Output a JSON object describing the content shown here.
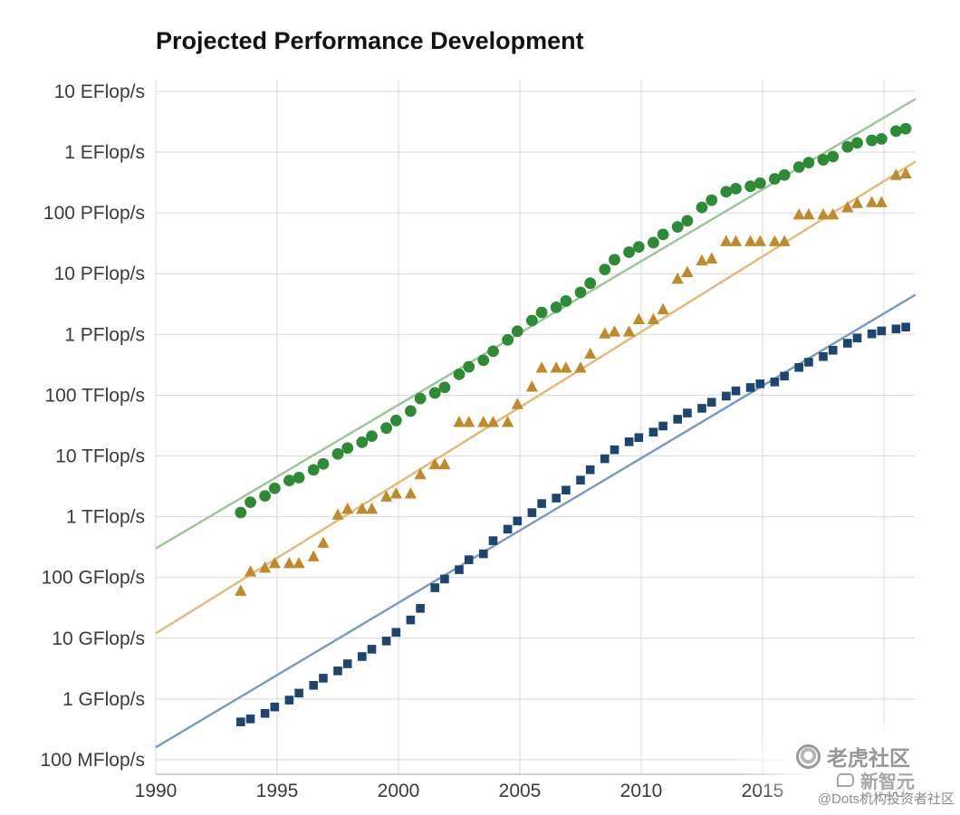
{
  "chart_data": {
    "type": "scatter",
    "title": "Projected Performance Development",
    "x_axis": {
      "min": 1990,
      "max": 2021.3,
      "ticks": [
        1990,
        1995,
        2000,
        2005,
        2010,
        2015,
        2020
      ],
      "grid": true
    },
    "y_axis": {
      "scale": "log",
      "unit": "Flop/s",
      "grid": true,
      "ticks": [
        {
          "label": "10 EFlop/s",
          "gflops": 10000000000.0
        },
        {
          "label": "1 EFlop/s",
          "gflops": 1000000000.0
        },
        {
          "label": "100 PFlop/s",
          "gflops": 100000000.0
        },
        {
          "label": "10 PFlop/s",
          "gflops": 10000000.0
        },
        {
          "label": "1 PFlop/s",
          "gflops": 1000000.0
        },
        {
          "label": "100 TFlop/s",
          "gflops": 100000.0
        },
        {
          "label": "10 TFlop/s",
          "gflops": 10000.0
        },
        {
          "label": "1 TFlop/s",
          "gflops": 1000.0
        },
        {
          "label": "100 GFlop/s",
          "gflops": 100.0
        },
        {
          "label": "10 GFlop/s",
          "gflops": 10
        },
        {
          "label": "1 GFlop/s",
          "gflops": 1
        },
        {
          "label": "100 MFlop/s",
          "gflops": 0.1
        }
      ]
    },
    "style": {
      "grid_color": "#d9d9d9",
      "axis_color": "#a0a0a0",
      "tick_color": "#3b3b3b",
      "title_color": "#111111",
      "background": "#ffffff"
    },
    "series": [
      {
        "id": "sum",
        "marker": "circle",
        "color": "#2e8b35",
        "trend_color": "#9cc79b",
        "points": [
          [
            1993.5,
            1170
          ],
          [
            1993.9,
            1730
          ],
          [
            1994.5,
            2200
          ],
          [
            1994.9,
            2930
          ],
          [
            1995.5,
            3940
          ],
          [
            1995.9,
            4400
          ],
          [
            1996.5,
            5900
          ],
          [
            1996.9,
            7400
          ],
          [
            1997.5,
            10800
          ],
          [
            1997.9,
            13500
          ],
          [
            1998.5,
            16800
          ],
          [
            1998.9,
            21200
          ],
          [
            1999.5,
            28800
          ],
          [
            1999.9,
            38400
          ],
          [
            2000.5,
            54800
          ],
          [
            2000.9,
            88100
          ],
          [
            2001.5,
            108800
          ],
          [
            2001.9,
            134400
          ],
          [
            2002.5,
            220600
          ],
          [
            2002.9,
            293000
          ],
          [
            2003.5,
            375000
          ],
          [
            2003.9,
            528000
          ],
          [
            2004.5,
            813000
          ],
          [
            2004.9,
            1127000
          ],
          [
            2005.5,
            1690000
          ],
          [
            2005.9,
            2300000
          ],
          [
            2006.5,
            2790000
          ],
          [
            2006.9,
            3540000
          ],
          [
            2007.5,
            4920000
          ],
          [
            2007.9,
            6970000
          ],
          [
            2008.5,
            11700000
          ],
          [
            2008.9,
            16950000
          ],
          [
            2009.5,
            22600000
          ],
          [
            2009.9,
            27600000
          ],
          [
            2010.5,
            32400000
          ],
          [
            2010.9,
            44200000
          ],
          [
            2011.5,
            58700000
          ],
          [
            2011.9,
            74200000
          ],
          [
            2012.5,
            123400000
          ],
          [
            2012.9,
            162000000
          ],
          [
            2013.5,
            223000000
          ],
          [
            2013.9,
            250000000
          ],
          [
            2014.5,
            274000000
          ],
          [
            2014.9,
            309000000
          ],
          [
            2015.5,
            363000000
          ],
          [
            2015.9,
            420000000
          ],
          [
            2016.5,
            567000000
          ],
          [
            2016.9,
            672000000
          ],
          [
            2017.5,
            749000000
          ],
          [
            2017.9,
            845000000
          ],
          [
            2018.5,
            1220000000
          ],
          [
            2018.9,
            1420000000
          ],
          [
            2019.5,
            1560000000
          ],
          [
            2019.9,
            1650000000
          ],
          [
            2020.5,
            2220000000
          ],
          [
            2020.9,
            2430000000
          ]
        ]
      },
      {
        "id": "top1",
        "marker": "triangle",
        "color": "#bf8a2b",
        "trend_color": "#e2ba7c",
        "points": [
          [
            1993.5,
            59.7
          ],
          [
            1993.9,
            124
          ],
          [
            1994.5,
            143.4
          ],
          [
            1994.9,
            170
          ],
          [
            1995.5,
            170
          ],
          [
            1995.9,
            170
          ],
          [
            1996.5,
            220.4
          ],
          [
            1996.9,
            368.2
          ],
          [
            1997.5,
            1068
          ],
          [
            1997.9,
            1338
          ],
          [
            1998.5,
            1338
          ],
          [
            1998.9,
            1338
          ],
          [
            1999.5,
            2121
          ],
          [
            1999.9,
            2379
          ],
          [
            2000.5,
            2379
          ],
          [
            2000.9,
            4938
          ],
          [
            2001.5,
            7226
          ],
          [
            2001.9,
            7226
          ],
          [
            2002.5,
            35860
          ],
          [
            2002.9,
            35860
          ],
          [
            2003.5,
            35860
          ],
          [
            2003.9,
            35860
          ],
          [
            2004.5,
            35860
          ],
          [
            2004.9,
            70720
          ],
          [
            2005.5,
            136800
          ],
          [
            2005.9,
            280600
          ],
          [
            2006.5,
            280600
          ],
          [
            2006.9,
            280600
          ],
          [
            2007.5,
            280600
          ],
          [
            2007.9,
            478200
          ],
          [
            2008.5,
            1026000
          ],
          [
            2008.9,
            1105000
          ],
          [
            2009.5,
            1105000
          ],
          [
            2009.9,
            1759000
          ],
          [
            2010.5,
            1759000
          ],
          [
            2010.9,
            2566000
          ],
          [
            2011.5,
            8162000
          ],
          [
            2011.9,
            10510000
          ],
          [
            2012.5,
            16320000
          ],
          [
            2012.9,
            17590000
          ],
          [
            2013.5,
            33860000
          ],
          [
            2013.9,
            33860000
          ],
          [
            2014.5,
            33860000
          ],
          [
            2014.9,
            33860000
          ],
          [
            2015.5,
            33860000
          ],
          [
            2015.9,
            33860000
          ],
          [
            2016.5,
            93010000
          ],
          [
            2016.9,
            93010000
          ],
          [
            2017.5,
            93010000
          ],
          [
            2017.9,
            93010000
          ],
          [
            2018.5,
            122300000
          ],
          [
            2018.9,
            143500000
          ],
          [
            2019.5,
            148600000
          ],
          [
            2019.9,
            148600000
          ],
          [
            2020.5,
            415500000
          ],
          [
            2020.9,
            442000000
          ]
        ]
      },
      {
        "id": "top500",
        "marker": "square",
        "color": "#1c4670",
        "trend_color": "#7b9cc2",
        "points": [
          [
            1993.5,
            0.42
          ],
          [
            1993.9,
            0.47
          ],
          [
            1994.5,
            0.58
          ],
          [
            1994.9,
            0.74
          ],
          [
            1995.5,
            0.96
          ],
          [
            1995.9,
            1.25
          ],
          [
            1996.5,
            1.68
          ],
          [
            1996.9,
            2.2
          ],
          [
            1997.5,
            2.9
          ],
          [
            1997.9,
            3.8
          ],
          [
            1998.5,
            5.0
          ],
          [
            1998.9,
            6.6
          ],
          [
            1999.5,
            9.0
          ],
          [
            1999.9,
            12.5
          ],
          [
            2000.5,
            20
          ],
          [
            2000.9,
            31
          ],
          [
            2001.5,
            67.8
          ],
          [
            2001.9,
            94.3
          ],
          [
            2002.5,
            134.3
          ],
          [
            2002.9,
            195.8
          ],
          [
            2003.5,
            245.1
          ],
          [
            2003.9,
            403
          ],
          [
            2004.5,
            624
          ],
          [
            2004.9,
            850.6
          ],
          [
            2005.5,
            1166
          ],
          [
            2005.9,
            1646
          ],
          [
            2006.5,
            2026
          ],
          [
            2006.9,
            2737
          ],
          [
            2007.5,
            4005
          ],
          [
            2007.9,
            5930
          ],
          [
            2008.5,
            9000
          ],
          [
            2008.9,
            12640
          ],
          [
            2009.5,
            17100
          ],
          [
            2009.9,
            20050
          ],
          [
            2010.5,
            24670
          ],
          [
            2010.9,
            31110
          ],
          [
            2011.5,
            40190
          ],
          [
            2011.9,
            50900
          ],
          [
            2012.5,
            60820
          ],
          [
            2012.9,
            76460
          ],
          [
            2013.5,
            96620
          ],
          [
            2013.9,
            117800
          ],
          [
            2014.5,
            133700
          ],
          [
            2014.9,
            153600
          ],
          [
            2015.5,
            164800
          ],
          [
            2015.9,
            206300
          ],
          [
            2016.5,
            286100
          ],
          [
            2016.9,
            349300
          ],
          [
            2017.5,
            432200
          ],
          [
            2017.9,
            548700
          ],
          [
            2018.5,
            716000
          ],
          [
            2018.9,
            874800
          ],
          [
            2019.5,
            1022000
          ],
          [
            2019.9,
            1142000
          ],
          [
            2020.5,
            1230000
          ],
          [
            2020.9,
            1320000
          ]
        ]
      }
    ],
    "trend_lines": [
      {
        "series": "sum",
        "x": [
          1990,
          2021.3
        ],
        "gflops": [
          300,
          7500000000.0
        ]
      },
      {
        "series": "top1",
        "x": [
          1990,
          2021.3
        ],
        "gflops": [
          12,
          700000000.0
        ]
      },
      {
        "series": "top500",
        "x": [
          1990,
          2021.3
        ],
        "gflops": [
          0.16,
          4500000.0
        ]
      }
    ]
  },
  "watermarks": {
    "tiger_community": "老虎社区",
    "xinzhiyuan": "新智元",
    "dots": "@Dots机构投资者社区"
  }
}
